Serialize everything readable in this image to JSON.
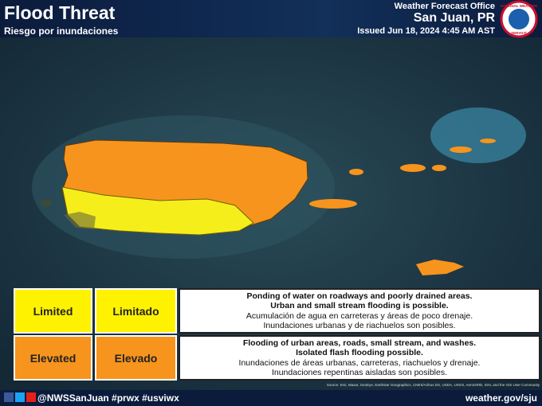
{
  "header": {
    "title": "Flood Threat",
    "subtitle": "Riesgo por inundaciones",
    "office_line": "Weather Forecast Office",
    "office": "San Juan, PR",
    "issued": "Issued Jun 18, 2024 4:45 AM AST",
    "logo_top": "NATIONAL WEATHER",
    "logo_bottom": "SERVICE"
  },
  "legend": {
    "rows": [
      {
        "label_en": "Limited",
        "label_es": "Limitado",
        "lines": [
          "Ponding of water on roadways and poorly drained areas.",
          "Urban and small stream flooding is possible.",
          "Acumulación de agua en carreteras y áreas de poco drenaje.",
          "Inundaciones urbanas y de riachuelos son posibles."
        ]
      },
      {
        "label_en": "Elevated",
        "label_es": "Elevado",
        "lines": [
          "Flooding of urban areas, roads, small stream, and washes.",
          "Isolated flash flooding possible.",
          "Inundaciones de áreas urbanas, carreteras, riachuelos y drenaje.",
          "Inundaciones repentinas aisladas son posibles."
        ]
      }
    ]
  },
  "source": "Source: Esri, Maxar, GeoEye, Earthstar Geographics, CNES/Airbus DS, USDA, USGS, AeroGRID, IGN, and the GIS User Community",
  "footer": {
    "social": "@NWSSanJuan #prwx #usviwx",
    "url": "weather.gov/sju"
  }
}
